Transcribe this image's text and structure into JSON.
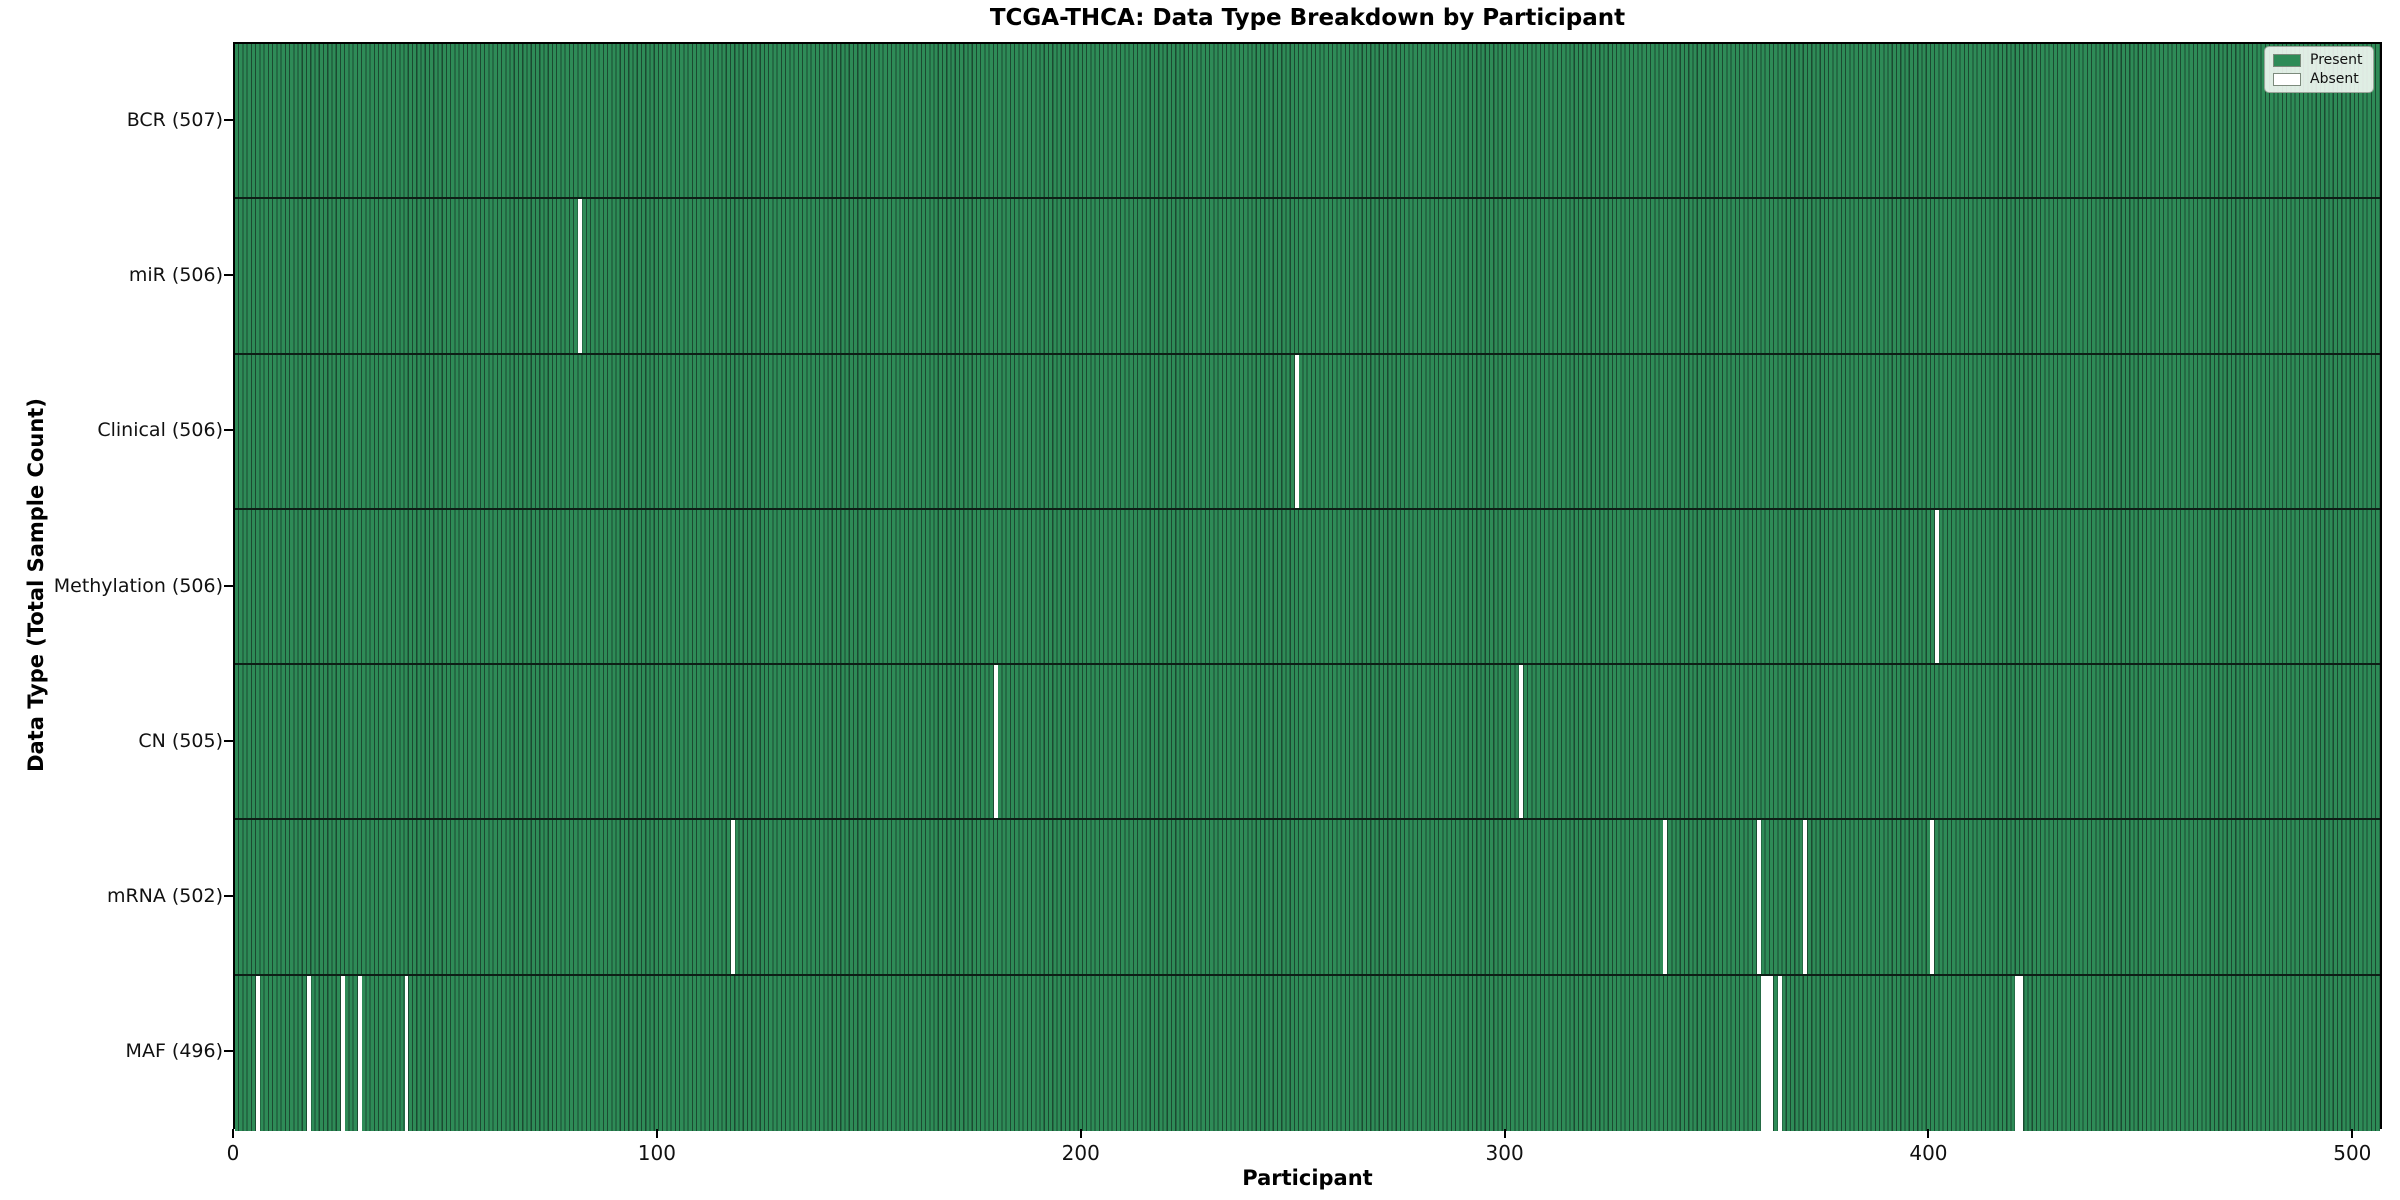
{
  "chart_data": {
    "type": "heatmap",
    "title": "TCGA-THCA: Data Type Breakdown by Participant",
    "xlabel": "Participant",
    "ylabel": "Data Type (Total Sample Count)",
    "n_participants": 507,
    "x_ticks": [
      0,
      100,
      200,
      300,
      400,
      500
    ],
    "xlim": [
      0,
      507
    ],
    "grid": false,
    "legend_position": "upper right",
    "colors": {
      "present": "#2e8b57",
      "absent": "#ffffff",
      "cell_edge": "#1b4a31",
      "row_separator": "#0d1f16",
      "spine": "#000000"
    },
    "legend": [
      {
        "label": "Present",
        "color": "#2e8b57"
      },
      {
        "label": "Absent",
        "color": "#ffffff"
      }
    ],
    "rows": [
      {
        "label": "BCR (507)",
        "data_type": "BCR",
        "total_samples": 507,
        "absent_participants": []
      },
      {
        "label": "miR (506)",
        "data_type": "miR",
        "total_samples": 506,
        "absent_participants": [
          81
        ]
      },
      {
        "label": "Clinical (506)",
        "data_type": "Clinical",
        "total_samples": 506,
        "absent_participants": [
          250
        ]
      },
      {
        "label": "Methylation (506)",
        "data_type": "Methylation",
        "total_samples": 506,
        "absent_participants": [
          401
        ]
      },
      {
        "label": "CN (505)",
        "data_type": "CN",
        "total_samples": 505,
        "absent_participants": [
          179,
          303
        ]
      },
      {
        "label": "mRNA (502)",
        "data_type": "mRNA",
        "total_samples": 502,
        "absent_participants": [
          117,
          337,
          359,
          370,
          400
        ]
      },
      {
        "label": "MAF (496)",
        "data_type": "MAF",
        "total_samples": 496,
        "absent_participants": [
          5,
          17,
          25,
          29,
          40,
          360,
          361,
          362,
          364,
          420,
          421
        ]
      }
    ]
  }
}
